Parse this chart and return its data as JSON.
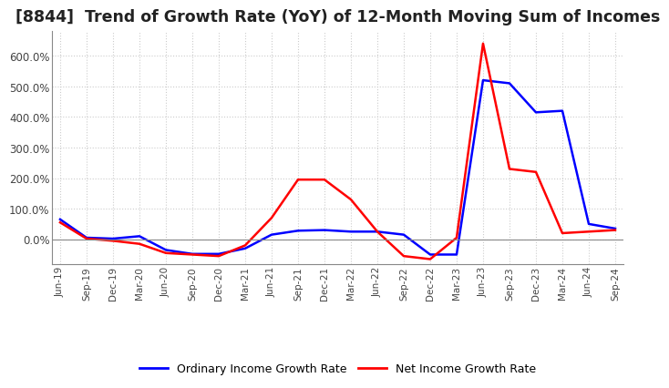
{
  "title": "[8844]  Trend of Growth Rate (YoY) of 12-Month Moving Sum of Incomes",
  "title_fontsize": 12.5,
  "ylim": [
    -80,
    680
  ],
  "yticks": [
    0,
    100,
    200,
    300,
    400,
    500,
    600
  ],
  "ytick_labels": [
    "0.0%",
    "100.0%",
    "200.0%",
    "300.0%",
    "400.0%",
    "500.0%",
    "600.0%"
  ],
  "background_color": "#ffffff",
  "legend_labels": [
    "Ordinary Income Growth Rate",
    "Net Income Growth Rate"
  ],
  "legend_colors": [
    "#0000ff",
    "#ff0000"
  ],
  "x_labels": [
    "Jun-19",
    "Sep-19",
    "Dec-19",
    "Mar-20",
    "Jun-20",
    "Sep-20",
    "Dec-20",
    "Mar-21",
    "Jun-21",
    "Sep-21",
    "Dec-21",
    "Mar-22",
    "Jun-22",
    "Sep-22",
    "Dec-22",
    "Mar-23",
    "Jun-23",
    "Sep-23",
    "Dec-23",
    "Mar-24",
    "Jun-24",
    "Sep-24"
  ],
  "ordinary_income_growth": [
    65,
    5,
    2,
    10,
    -35,
    -48,
    -48,
    -30,
    15,
    28,
    30,
    25,
    25,
    15,
    -50,
    -50,
    520,
    510,
    415,
    420,
    50,
    35
  ],
  "net_income_growth": [
    55,
    2,
    -5,
    -15,
    -45,
    -50,
    -55,
    -20,
    70,
    195,
    195,
    130,
    25,
    -55,
    -65,
    5,
    640,
    230,
    220,
    20,
    25,
    30
  ],
  "grid_color": "#cccccc",
  "grid_linestyle": "dotted",
  "line_width": 1.8,
  "title_color": "#222222",
  "tick_color": "#444444"
}
